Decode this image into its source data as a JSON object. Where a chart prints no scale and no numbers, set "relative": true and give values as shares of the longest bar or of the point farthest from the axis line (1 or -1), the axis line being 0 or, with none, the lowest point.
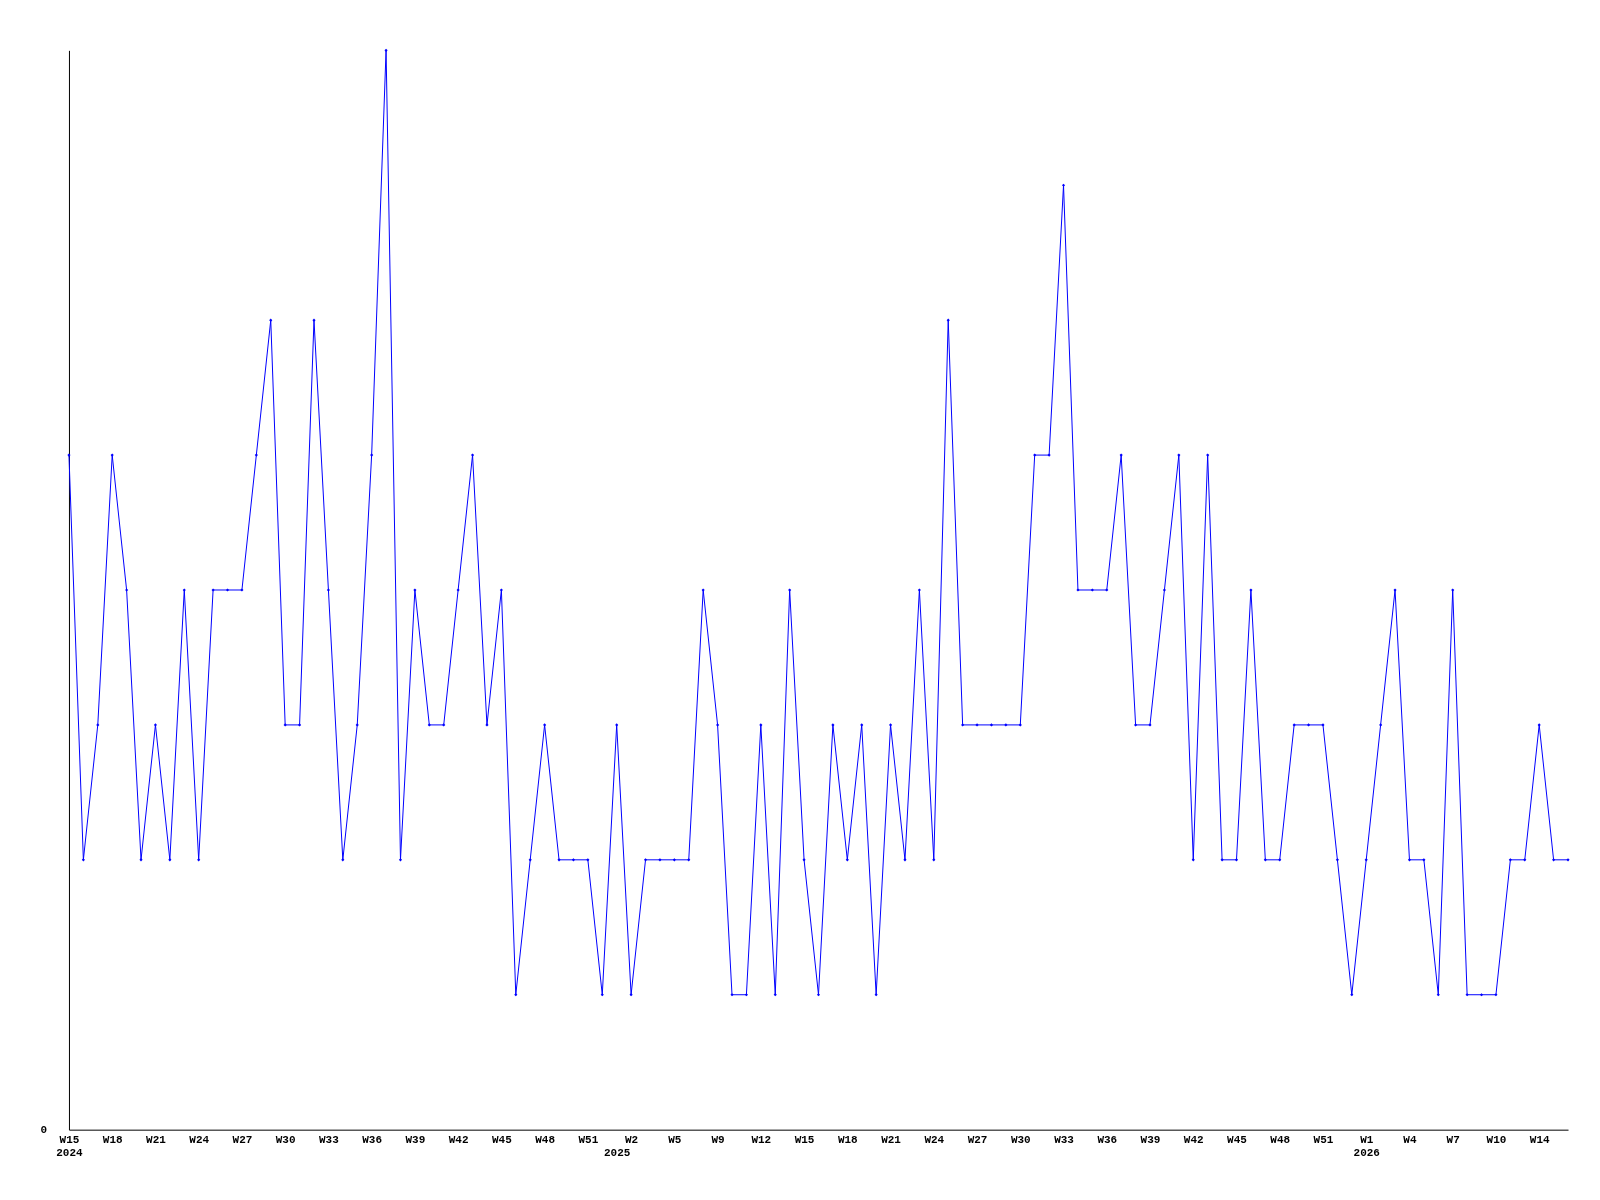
{
  "chart_data": {
    "type": "line",
    "relative": true,
    "marker": "diamond",
    "grid": false,
    "categories": [
      "W15\n2024",
      null,
      null,
      "W18",
      null,
      null,
      "W21",
      null,
      null,
      "W24",
      null,
      null,
      "W27",
      null,
      null,
      "W30",
      null,
      null,
      "W33",
      null,
      null,
      "W36",
      null,
      null,
      "W39",
      null,
      null,
      "W42",
      null,
      null,
      "W45",
      null,
      null,
      "W48",
      null,
      null,
      "W51",
      null,
      "\n2025",
      "W2",
      null,
      null,
      "W5",
      null,
      null,
      "W9",
      null,
      null,
      "W12",
      null,
      null,
      "W15",
      null,
      null,
      "W18",
      null,
      null,
      "W21",
      null,
      null,
      "W24",
      null,
      null,
      "W27",
      null,
      null,
      "W30",
      null,
      null,
      "W33",
      null,
      null,
      "W36",
      null,
      null,
      "W39",
      null,
      null,
      "W42",
      null,
      null,
      "W45",
      null,
      null,
      "W48",
      null,
      null,
      "W51",
      null,
      null,
      "W1\n2026",
      null,
      null,
      "W4",
      null,
      null,
      "W7",
      null,
      null,
      "W10",
      null,
      null,
      "W14",
      null,
      null
    ],
    "series": [
      {
        "color": "#0000ff",
        "values": [
          0.625,
          0.25,
          0.375,
          0.625,
          0.5,
          0.25,
          0.375,
          0.25,
          0.5,
          0.25,
          0.5,
          0.5,
          0.5,
          0.625,
          0.75,
          0.375,
          0.375,
          0.75,
          0.5,
          0.25,
          0.375,
          0.625,
          1,
          0.25,
          0.5,
          0.375,
          0.375,
          0.5,
          0.625,
          0.375,
          0.5,
          0.125,
          0.25,
          0.375,
          0.25,
          0.25,
          0.25,
          0.125,
          0.375,
          0.125,
          0.25,
          0.25,
          0.25,
          0.25,
          0.5,
          0.375,
          0.125,
          0.125,
          0.375,
          0.125,
          0.5,
          0.25,
          0.125,
          0.375,
          0.25,
          0.375,
          0.125,
          0.375,
          0.25,
          0.5,
          0.25,
          0.75,
          0.375,
          0.375,
          0.375,
          0.375,
          0.375,
          0.625,
          0.625,
          0.875,
          0.5,
          0.5,
          0.5,
          0.625,
          0.375,
          0.375,
          0.5,
          0.625,
          0.25,
          0.625,
          0.25,
          0.25,
          0.5,
          0.25,
          0.25,
          0.375,
          0.375,
          0.375,
          0.25,
          0.125,
          0.25,
          0.375,
          0.5,
          0.25,
          0.25,
          0.125,
          0.5,
          0.125,
          0.125,
          0.125,
          0.25,
          0.25,
          0.375,
          0.25,
          0.25
        ]
      }
    ],
    "annotations": [
      "0"
    ]
  }
}
